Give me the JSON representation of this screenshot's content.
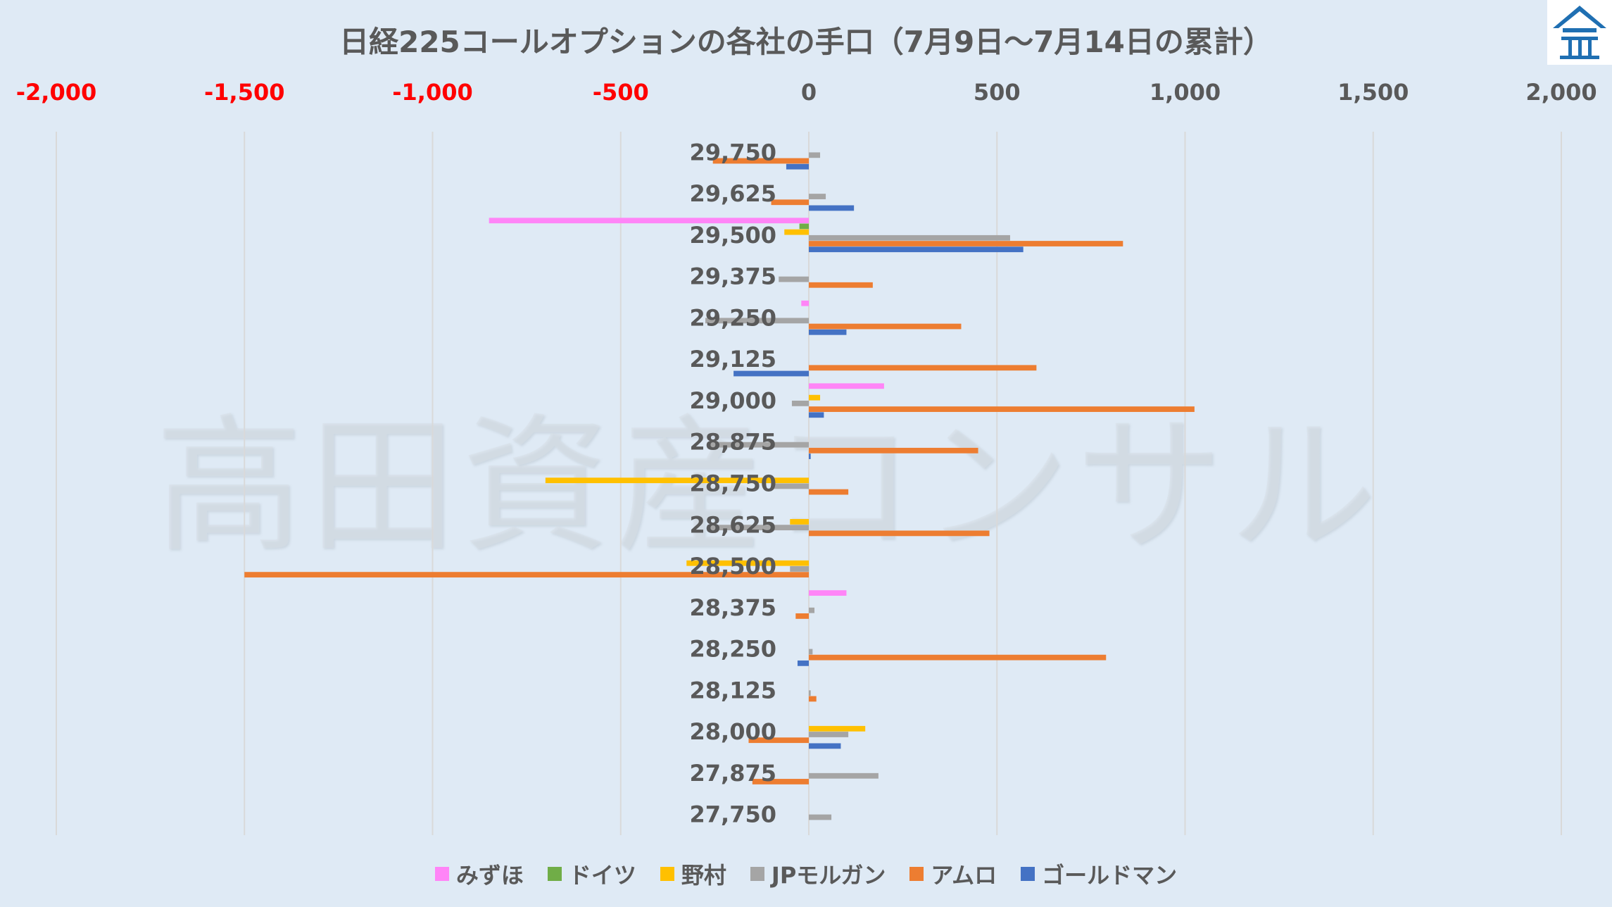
{
  "chart_data": {
    "type": "bar",
    "orientation": "horizontal",
    "title": "日経225コールオプションの各社の手口（7月9日〜7月14日の累計）",
    "xlim": [
      -2000,
      2000
    ],
    "xticks": [
      -2000,
      -1500,
      -1000,
      -500,
      0,
      500,
      1000,
      1500,
      2000
    ],
    "xtick_labels": [
      "-2,000",
      "-1,500",
      "-1,000",
      "-500",
      "0",
      "500",
      "1,000",
      "1,500",
      "2,000"
    ],
    "negative_tick_color": "#ff0000",
    "positive_tick_color": "#595959",
    "axis_position": "top",
    "grid": true,
    "legend": "bottom",
    "categories": [
      "29,750",
      "29,625",
      "29,500",
      "29,375",
      "29,250",
      "29,125",
      "29,000",
      "28,875",
      "28,750",
      "28,625",
      "28,500",
      "28,375",
      "28,250",
      "28,125",
      "28,000",
      "27,875",
      "27,750"
    ],
    "series": [
      {
        "name": "みずほ",
        "color": "#ff85f7",
        "values": [
          0,
          0,
          -850,
          0,
          -20,
          0,
          200,
          0,
          0,
          0,
          0,
          100,
          0,
          0,
          0,
          0,
          0
        ]
      },
      {
        "name": "ドイツ",
        "color": "#70ad47",
        "values": [
          0,
          0,
          -25,
          0,
          0,
          0,
          0,
          0,
          0,
          0,
          0,
          0,
          0,
          0,
          0,
          0,
          0
        ]
      },
      {
        "name": "野村",
        "color": "#ffc000",
        "values": [
          0,
          0,
          -65,
          0,
          0,
          0,
          30,
          0,
          -700,
          -50,
          -325,
          0,
          0,
          0,
          150,
          0,
          0
        ]
      },
      {
        "name": "JPモルガン",
        "color": "#a5a5a5",
        "values": [
          30,
          45,
          535,
          -80,
          -275,
          0,
          -45,
          -270,
          -100,
          -270,
          -50,
          15,
          10,
          5,
          105,
          185,
          60
        ]
      },
      {
        "name": "アムロ",
        "color": "#ed7d31",
        "values": [
          -255,
          -100,
          835,
          170,
          405,
          605,
          1025,
          450,
          105,
          480,
          -1500,
          -35,
          790,
          20,
          -160,
          -150,
          0
        ]
      },
      {
        "name": "ゴールドマン",
        "color": "#4472c4",
        "values": [
          -60,
          120,
          570,
          0,
          100,
          -200,
          40,
          5,
          0,
          0,
          0,
          0,
          -30,
          0,
          85,
          0,
          0
        ]
      }
    ]
  },
  "watermark": "高田資産コンサル",
  "logo": "高田資産コンサル logo"
}
